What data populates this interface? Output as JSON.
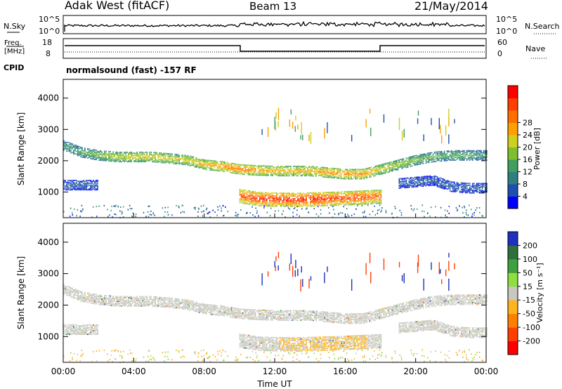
{
  "header": {
    "station": "Adak West (fitACF)",
    "beam": "Beam 13",
    "date": "21/May/2014"
  },
  "top_panel": {
    "left_label": "N.Sky",
    "left_ticks": [
      "10^5",
      "10^0"
    ],
    "right_ticks": [
      "10^5",
      "10^0"
    ],
    "right_label": "N.Search"
  },
  "freq_panel": {
    "left_label_1": "Freq.",
    "left_label_2": "[MHz]",
    "left_ticks": [
      "18",
      "8"
    ],
    "right_ticks": [
      "60",
      "0"
    ],
    "right_label": "Nave",
    "cpid_label": "CPID",
    "cpid_text": "normalsound (fast) -157 RF"
  },
  "chart_data": [
    {
      "type": "heatmap",
      "name_label": "Power [dB]",
      "ylabel": "Slant Range [km]",
      "xlabel": "Time UT",
      "ylim": [
        180,
        4600
      ],
      "yticks": [
        "1000",
        "2000",
        "3000",
        "4000"
      ],
      "colorbar_ticks": [
        "4",
        "8",
        "12",
        "16",
        "20",
        "24",
        "28"
      ],
      "colors": [
        "#0000ff",
        "#1f4fb0",
        "#2f7f7f",
        "#3f9f5f",
        "#7fbf2f",
        "#cfcf1f",
        "#ff9f00",
        "#ff6f00",
        "#ff3f00",
        "#ff0000"
      ],
      "layers": [
        {
          "name": "main-echo-band",
          "t_start": 0.0,
          "t_end": 24.0,
          "km_center": [
            2520,
            2300,
            2200,
            2150,
            2150,
            2150,
            2100,
            2050,
            1900,
            1850,
            1750,
            1720,
            1700,
            1700,
            1700,
            1650,
            1600,
            1600,
            1750,
            1900,
            2050,
            2150,
            2200,
            2200,
            2200
          ],
          "power": [
            10,
            12,
            14,
            16,
            18,
            18,
            18,
            18,
            20,
            22,
            24,
            22,
            20,
            20,
            20,
            22,
            22,
            22,
            18,
            16,
            14,
            12,
            12,
            12,
            10
          ]
        },
        {
          "name": "lower-echo-band",
          "t_start": 0.0,
          "t_end": 24.0,
          "km_center": [
            1250,
            1250,
            1250,
            null,
            null,
            null,
            null,
            null,
            null,
            null,
            null,
            null,
            null,
            null,
            null,
            null,
            null,
            null,
            null,
            1300,
            1350,
            1400,
            1200,
            1150,
            1150
          ],
          "power": [
            6,
            6,
            6,
            null,
            null,
            null,
            null,
            null,
            null,
            null,
            null,
            null,
            null,
            null,
            null,
            null,
            null,
            null,
            null,
            6,
            6,
            6,
            6,
            6,
            6
          ]
        },
        {
          "name": "near-range-strong",
          "t_start": 10.0,
          "t_end": 18.0,
          "km_center": [
            900,
            800,
            780,
            780,
            800,
            820,
            850,
            880
          ],
          "power": [
            26,
            28,
            28,
            28,
            28,
            26,
            26,
            24
          ]
        }
      ]
    },
    {
      "type": "heatmap",
      "name_label": "Velocity [m s^-1]",
      "ylabel": "Slant Range [km]",
      "xlabel": "Time UT",
      "ylim": [
        180,
        4600
      ],
      "yticks": [
        "1000",
        "2000",
        "3000",
        "4000"
      ],
      "colorbar_ticks": [
        "200",
        "100",
        "50",
        "15",
        "-15",
        "-50",
        "-100",
        "-200"
      ],
      "colors": [
        "#1f2fbf",
        "#2f6f3f",
        "#3fa03f",
        "#8fdf3f",
        "#c8c8c0",
        "#ffb41e",
        "#ff7f00",
        "#ff3f00",
        "#ff0000"
      ],
      "ground_scatter_color": "#c8c8c0",
      "notes": ""
    }
  ],
  "xaxis": {
    "ticks": [
      "00:00",
      "04:00",
      "08:00",
      "12:00",
      "16:00",
      "20:00",
      "00:00"
    ],
    "label": "Time UT"
  },
  "colorbar1_label": "Power [dB]",
  "colorbar2_label": "Velocity [m s⁻¹]"
}
